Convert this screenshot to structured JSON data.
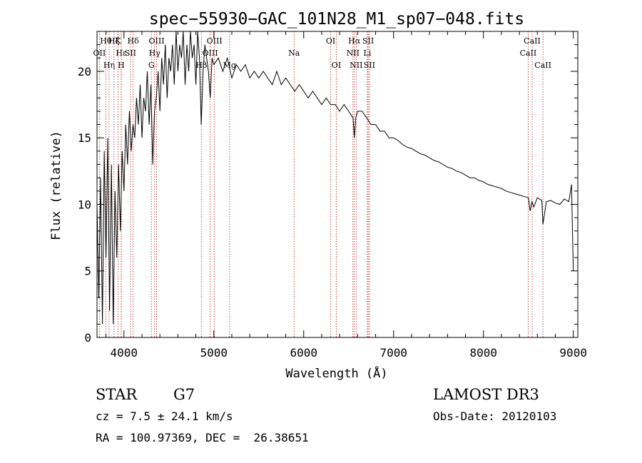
{
  "chart_data": {
    "type": "line",
    "title": "spec−55930−GAC_101N28_M1_sp07−048.fits",
    "xlabel": "Wavelength (Å)",
    "ylabel": "Flux (relative)",
    "xlim": [
      3700,
      9050
    ],
    "ylim": [
      0,
      23
    ],
    "x_ticks": [
      4000,
      5000,
      6000,
      7000,
      8000,
      9000
    ],
    "y_ticks": [
      0,
      5,
      10,
      15,
      20
    ],
    "line_color": "#000000",
    "marker_color": "#b22222",
    "series": [
      {
        "name": "flux",
        "x": [
          3700,
          3720,
          3740,
          3760,
          3780,
          3800,
          3820,
          3840,
          3860,
          3880,
          3900,
          3920,
          3940,
          3960,
          3980,
          4000,
          4020,
          4040,
          4060,
          4080,
          4100,
          4120,
          4140,
          4160,
          4180,
          4200,
          4220,
          4240,
          4260,
          4280,
          4300,
          4320,
          4340,
          4360,
          4380,
          4400,
          4420,
          4440,
          4460,
          4480,
          4500,
          4520,
          4540,
          4560,
          4580,
          4600,
          4620,
          4640,
          4660,
          4680,
          4700,
          4720,
          4740,
          4760,
          4780,
          4800,
          4820,
          4840,
          4860,
          4880,
          4900,
          4920,
          4940,
          4960,
          4980,
          5000,
          5050,
          5100,
          5150,
          5200,
          5250,
          5300,
          5350,
          5400,
          5450,
          5500,
          5550,
          5600,
          5650,
          5700,
          5750,
          5800,
          5850,
          5900,
          5950,
          6000,
          6050,
          6100,
          6150,
          6200,
          6250,
          6300,
          6350,
          6400,
          6450,
          6500,
          6550,
          6563,
          6580,
          6600,
          6650,
          6700,
          6750,
          6800,
          6850,
          6900,
          6950,
          7000,
          7050,
          7100,
          7150,
          7200,
          7250,
          7300,
          7350,
          7400,
          7450,
          7500,
          7550,
          7600,
          7650,
          7700,
          7750,
          7800,
          7850,
          7900,
          7950,
          8000,
          8050,
          8100,
          8150,
          8200,
          8250,
          8300,
          8350,
          8400,
          8450,
          8500,
          8520,
          8540,
          8560,
          8600,
          8650,
          8662,
          8700,
          8750,
          8800,
          8850,
          8900,
          8950,
          8980,
          9000
        ],
        "values": [
          10,
          3,
          12,
          1,
          14,
          6,
          15,
          2,
          13,
          1,
          11,
          6,
          13,
          8,
          14,
          11,
          16,
          13,
          17,
          14,
          16,
          15,
          18,
          16,
          19,
          15,
          18,
          17,
          20,
          16,
          19,
          13,
          17,
          18,
          20,
          17,
          21,
          19,
          22,
          18,
          21,
          20,
          22,
          19,
          23,
          20,
          22,
          21,
          23,
          19,
          22,
          20,
          23,
          21,
          22,
          19,
          23,
          21,
          16,
          20,
          22,
          21,
          20,
          18,
          21,
          20.5,
          21,
          20,
          21,
          19.5,
          20.5,
          20,
          20.5,
          19.5,
          20,
          19.5,
          20,
          19.5,
          19,
          20,
          19,
          19.5,
          19,
          18.5,
          19,
          18.5,
          18,
          18.5,
          18,
          17.5,
          18,
          17.5,
          17.5,
          17,
          17.5,
          17,
          16.5,
          15,
          16.5,
          17,
          17,
          16.5,
          16,
          16,
          15.5,
          15.5,
          15,
          15,
          14.8,
          14.5,
          14.3,
          14.2,
          14,
          13.8,
          13.7,
          13.5,
          13.3,
          13.2,
          13,
          12.8,
          12.7,
          12.5,
          12.4,
          12.2,
          12,
          12,
          11.8,
          11.7,
          11.5,
          11.4,
          11.3,
          11.2,
          11,
          10.9,
          10.8,
          10.7,
          10.6,
          10.5,
          9.5,
          10.2,
          9.8,
          10.5,
          10.3,
          8.5,
          10.2,
          10.3,
          10.1,
          10,
          10.4,
          10.2,
          11.5,
          5
        ]
      }
    ],
    "lines": [
      {
        "name": "Hθ",
        "wl": 3798,
        "row": 1
      },
      {
        "name": "OII",
        "wl": 3727,
        "row": 2
      },
      {
        "name": "Hη",
        "wl": 3835,
        "row": 3
      },
      {
        "name": "Hζ",
        "wl": 3889,
        "row": 1
      },
      {
        "name": "Hε",
        "wl": 3970,
        "row": 2
      },
      {
        "name": "K",
        "wl": 3934,
        "row": 1
      },
      {
        "name": "H",
        "wl": 3969,
        "row": 3
      },
      {
        "name": "Hδ",
        "wl": 4102,
        "row": 1
      },
      {
        "name": "SII",
        "wl": 4072,
        "row": 2
      },
      {
        "name": "G",
        "wl": 4305,
        "row": 3
      },
      {
        "name": "OIII",
        "wl": 4363,
        "row": 1
      },
      {
        "name": "Hγ",
        "wl": 4341,
        "row": 2
      },
      {
        "name": "OIII",
        "wl": 5007,
        "row": 1
      },
      {
        "name": "OIII",
        "wl": 4959,
        "row": 2
      },
      {
        "name": "Hβ",
        "wl": 4861,
        "row": 3
      },
      {
        "name": "Mg",
        "wl": 5175,
        "row": 3
      },
      {
        "name": "Na",
        "wl": 5893,
        "row": 2
      },
      {
        "name": "OI",
        "wl": 6300,
        "row": 1
      },
      {
        "name": "OI",
        "wl": 6363,
        "row": 3
      },
      {
        "name": "Hα",
        "wl": 6563,
        "row": 1
      },
      {
        "name": "NII",
        "wl": 6548,
        "row": 2
      },
      {
        "name": "NII",
        "wl": 6584,
        "row": 3
      },
      {
        "name": "SII",
        "wl": 6717,
        "row": 1
      },
      {
        "name": "Li",
        "wl": 6708,
        "row": 2
      },
      {
        "name": "SII",
        "wl": 6731,
        "row": 3
      },
      {
        "name": "CaII",
        "wl": 8542,
        "row": 1
      },
      {
        "name": "CaII",
        "wl": 8498,
        "row": 2
      },
      {
        "name": "CaII",
        "wl": 8662,
        "row": 3
      }
    ]
  },
  "info": {
    "class": "STAR",
    "subclass": "G7",
    "survey": "LAMOST DR3",
    "redshift": "cz = 7.5 ± 24.1 km/s",
    "obs_date": "Obs-Date: 20120103",
    "coords": "RA = 100.97369, DEC =  26.38651"
  }
}
